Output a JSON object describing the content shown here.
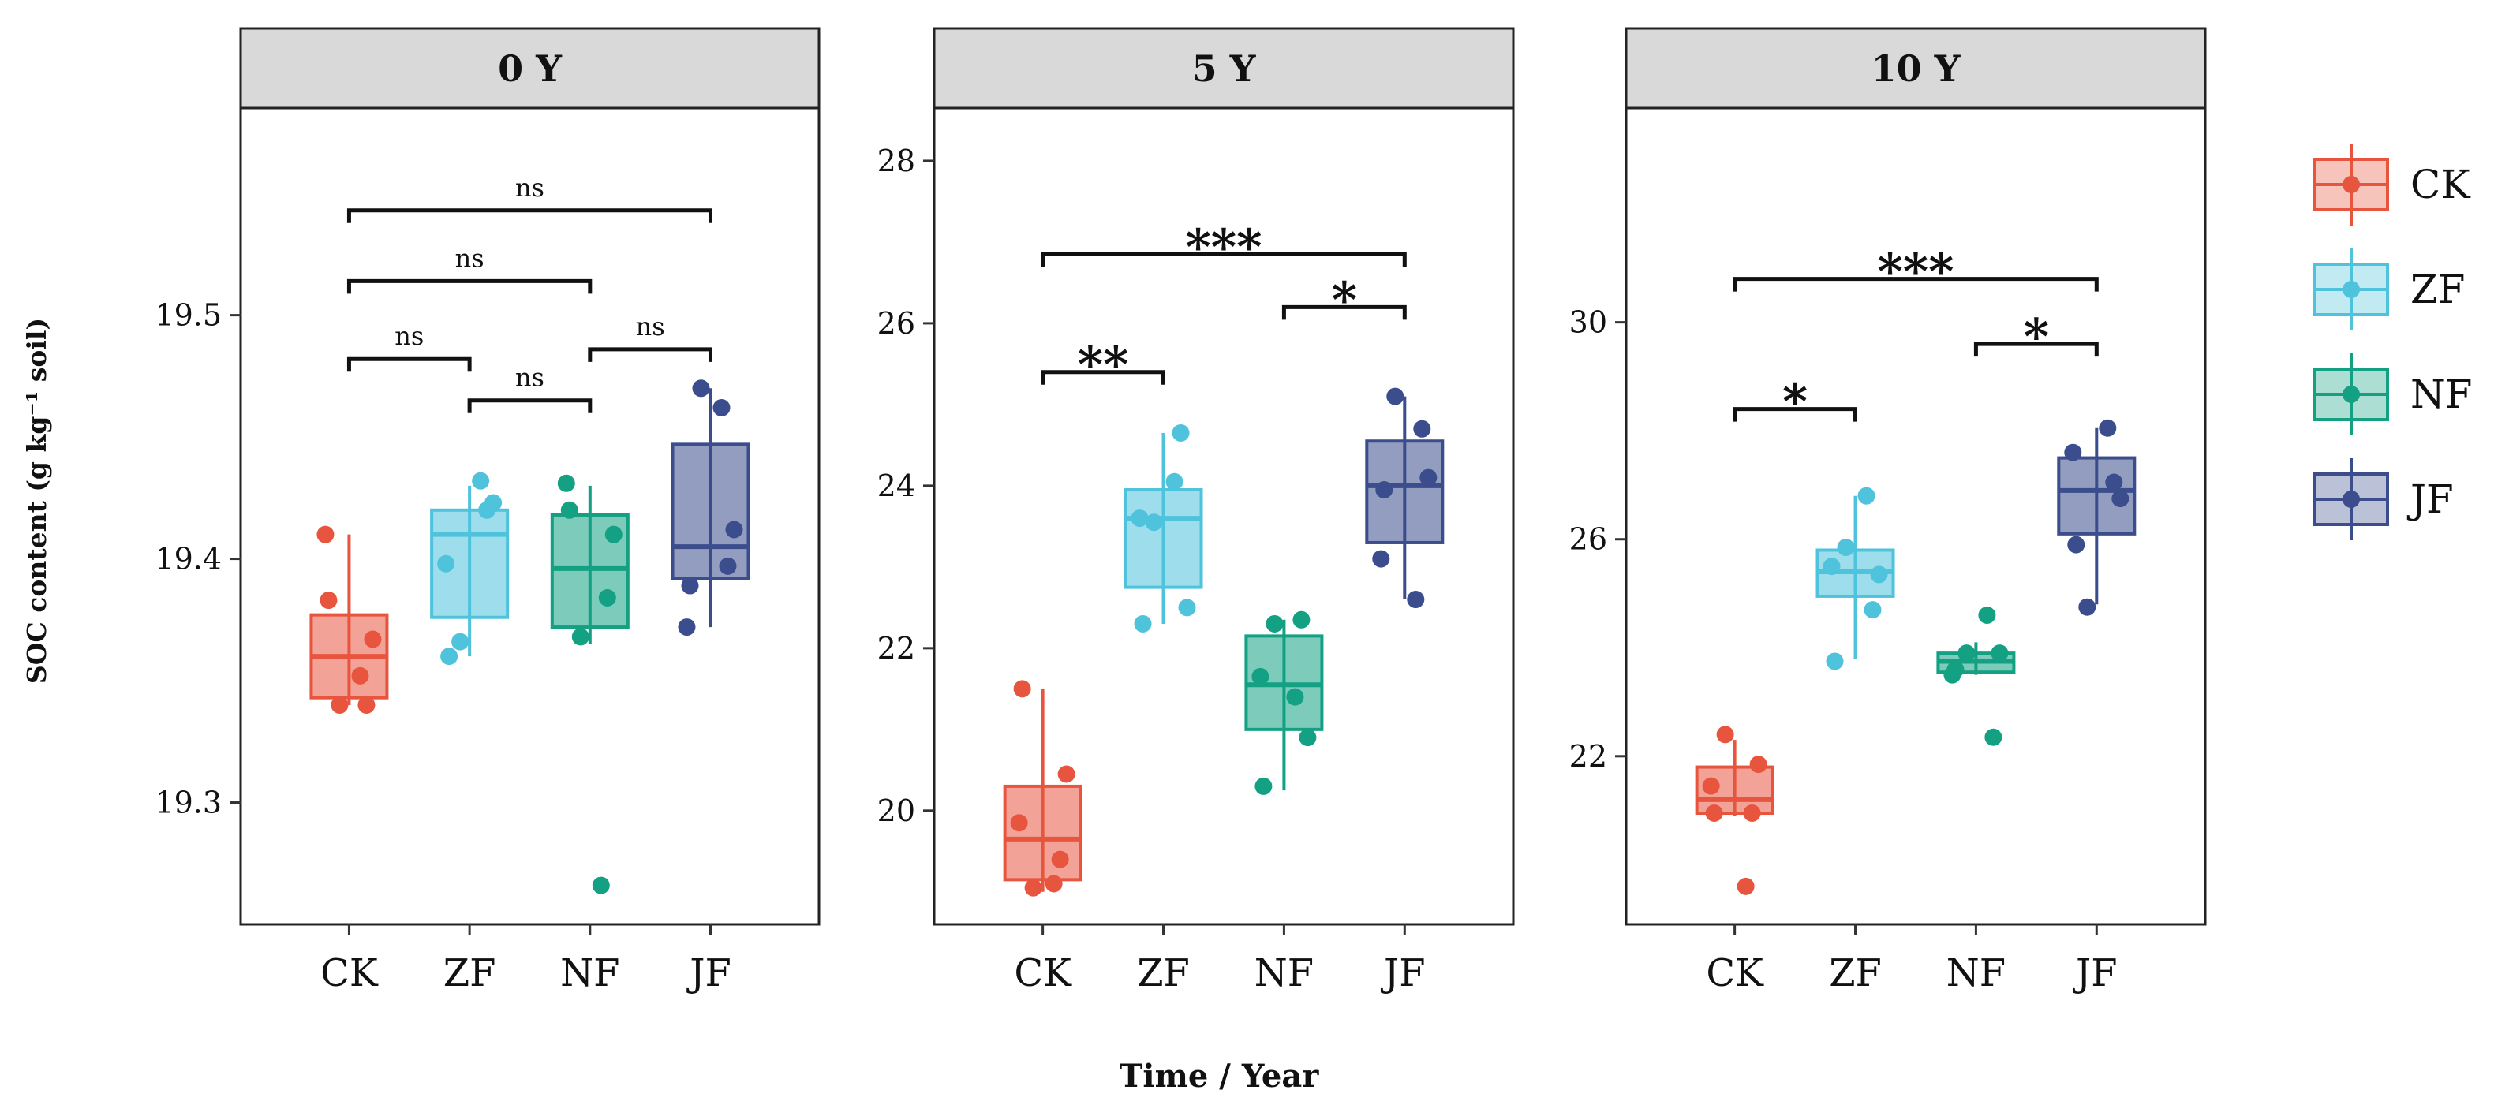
{
  "chart_data": {
    "type": "boxplot",
    "ylabel": "SOC content (g kg⁻¹ soil)",
    "xlabel": "Time / Year",
    "legend": {
      "position": "right",
      "entries": [
        {
          "name": "CK",
          "color": "#e8553f"
        },
        {
          "name": "ZF",
          "color": "#4fc3dc"
        },
        {
          "name": "NF",
          "color": "#13a083"
        },
        {
          "name": "JF",
          "color": "#3b4d8c"
        }
      ]
    },
    "panels": [
      {
        "title": "0 Y",
        "ylim": [
          19.25,
          19.585
        ],
        "yticks": [
          19.3,
          19.4,
          19.5
        ],
        "groups": [
          {
            "name": "CK",
            "color": "#e8553f",
            "box": {
              "min": 19.34,
              "q1": 19.343,
              "median": 19.36,
              "q3": 19.377,
              "max": 19.41
            },
            "points": [
              19.383,
              19.34,
              19.34,
              19.367,
              19.41,
              19.352
            ]
          },
          {
            "name": "ZF",
            "color": "#4fc3dc",
            "box": {
              "min": 19.36,
              "q1": 19.376,
              "median": 19.41,
              "q3": 19.42,
              "max": 19.43
            },
            "points": [
              19.36,
              19.42,
              19.366,
              19.423,
              19.398,
              19.432
            ]
          },
          {
            "name": "NF",
            "color": "#13a083",
            "box": {
              "min": 19.365,
              "q1": 19.372,
              "median": 19.396,
              "q3": 19.418,
              "max": 19.43
            },
            "points": [
              19.42,
              19.384,
              19.368,
              19.41,
              19.431,
              19.266
            ]
          },
          {
            "name": "JF",
            "color": "#3b4d8c",
            "box": {
              "min": 19.372,
              "q1": 19.392,
              "median": 19.405,
              "q3": 19.447,
              "max": 19.47
            },
            "points": [
              19.389,
              19.397,
              19.47,
              19.412,
              19.372,
              19.462
            ]
          }
        ],
        "comparisons": [
          {
            "from": "CK",
            "to": "JF",
            "y": 19.543,
            "label": "ns"
          },
          {
            "from": "CK",
            "to": "NF",
            "y": 19.514,
            "label": "ns"
          },
          {
            "from": "CK",
            "to": "ZF",
            "y": 19.482,
            "label": "ns"
          },
          {
            "from": "NF",
            "to": "JF",
            "y": 19.486,
            "label": "ns"
          },
          {
            "from": "ZF",
            "to": "NF",
            "y": 19.465,
            "label": "ns"
          }
        ]
      },
      {
        "title": "5 Y",
        "ylim": [
          18.6,
          28.65
        ],
        "yticks": [
          20,
          22,
          24,
          26,
          28
        ],
        "groups": [
          {
            "name": "CK",
            "color": "#e8553f",
            "box": {
              "min": 19.0,
              "q1": 19.15,
              "median": 19.65,
              "q3": 20.3,
              "max": 21.5
            },
            "points": [
              21.5,
              19.4,
              19.05,
              20.45,
              19.85,
              19.1
            ]
          },
          {
            "name": "ZF",
            "color": "#4fc3dc",
            "box": {
              "min": 22.3,
              "q1": 22.75,
              "median": 23.6,
              "q3": 23.95,
              "max": 24.65
            },
            "points": [
              22.3,
              24.65,
              23.55,
              22.5,
              23.6,
              24.05
            ]
          },
          {
            "name": "NF",
            "color": "#13a083",
            "box": {
              "min": 20.25,
              "q1": 21.0,
              "median": 21.55,
              "q3": 22.15,
              "max": 22.35
            },
            "points": [
              20.3,
              22.35,
              22.3,
              20.9,
              21.65,
              21.4
            ]
          },
          {
            "name": "JF",
            "color": "#3b4d8c",
            "box": {
              "min": 22.6,
              "q1": 23.3,
              "median": 24.0,
              "q3": 24.55,
              "max": 25.1
            },
            "points": [
              23.95,
              24.7,
              25.1,
              24.1,
              23.1,
              22.6
            ]
          }
        ],
        "comparisons": [
          {
            "from": "CK",
            "to": "JF",
            "y": 26.85,
            "label": "***"
          },
          {
            "from": "NF",
            "to": "JF",
            "y": 26.2,
            "label": "*"
          },
          {
            "from": "CK",
            "to": "ZF",
            "y": 25.4,
            "label": "**"
          }
        ]
      },
      {
        "title": "10 Y",
        "ylim": [
          18.9,
          33.95
        ],
        "yticks": [
          22,
          26,
          30
        ],
        "groups": [
          {
            "name": "CK",
            "color": "#e8553f",
            "box": {
              "min": 20.9,
              "q1": 20.95,
              "median": 21.2,
              "q3": 21.8,
              "max": 22.3
            },
            "points": [
              20.95,
              20.95,
              22.4,
              21.85,
              21.45,
              19.6
            ]
          },
          {
            "name": "ZF",
            "color": "#4fc3dc",
            "box": {
              "min": 23.8,
              "q1": 24.95,
              "median": 25.4,
              "q3": 25.8,
              "max": 26.8
            },
            "points": [
              23.75,
              24.7,
              25.85,
              25.35,
              25.5,
              26.8
            ]
          },
          {
            "name": "NF",
            "color": "#13a083",
            "box": {
              "min": 23.5,
              "q1": 23.55,
              "median": 23.75,
              "q3": 23.9,
              "max": 24.1
            },
            "points": [
              23.6,
              22.35,
              23.9,
              23.9,
              23.5,
              24.6
            ]
          },
          {
            "name": "JF",
            "color": "#3b4d8c",
            "box": {
              "min": 24.8,
              "q1": 26.1,
              "median": 26.9,
              "q3": 27.5,
              "max": 28.05
            },
            "points": [
              25.9,
              27.05,
              24.75,
              26.75,
              27.6,
              28.05
            ]
          }
        ],
        "comparisons": [
          {
            "from": "CK",
            "to": "JF",
            "y": 30.8,
            "label": "***"
          },
          {
            "from": "NF",
            "to": "JF",
            "y": 29.6,
            "label": "*"
          },
          {
            "from": "CK",
            "to": "ZF",
            "y": 28.4,
            "label": "*"
          }
        ]
      }
    ]
  }
}
